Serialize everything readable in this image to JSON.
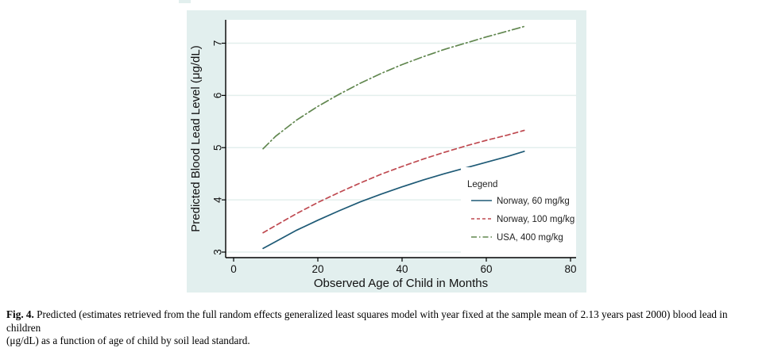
{
  "figure": {
    "frame_color": "#e2efee",
    "plot_bg": "#ffffff",
    "grid_color": "#e3efed",
    "axis_color": "#000000",
    "caption": {
      "label": "Fig. 4.",
      "lines": [
        "Predicted (estimates retrieved from the full random effects generalized least squares model with year fixed at the sample mean of 2.13 years past 2000) blood lead in children",
        "(μg/dL) as a function of age of child by soil lead standard."
      ]
    }
  },
  "chart_data": {
    "type": "line",
    "title": "",
    "xlabel": "Observed Age of Child in Months",
    "ylabel": "Predicted Blood Lead Level (μg/dL)",
    "xlim": [
      -2,
      81
    ],
    "ylim": [
      2.9,
      7.45
    ],
    "x_ticks": [
      0,
      20,
      40,
      60,
      80
    ],
    "y_ticks": [
      3,
      4,
      5,
      6,
      7
    ],
    "grid": "horizontal",
    "legend": {
      "title": "Legend",
      "position": "inside-lower-right"
    },
    "x": [
      7,
      10,
      15,
      20,
      25,
      30,
      35,
      40,
      45,
      50,
      55,
      60,
      65,
      69
    ],
    "series": [
      {
        "name": "Norway, 60 mg/kg",
        "color": "#1e5a76",
        "style": "solid",
        "values": [
          3.07,
          3.2,
          3.42,
          3.61,
          3.79,
          3.96,
          4.11,
          4.25,
          4.38,
          4.5,
          4.61,
          4.72,
          4.83,
          4.93
        ]
      },
      {
        "name": "Norway, 100 mg/kg",
        "color": "#bf4a51",
        "style": "dashed",
        "values": [
          3.37,
          3.51,
          3.74,
          3.95,
          4.14,
          4.32,
          4.49,
          4.64,
          4.78,
          4.91,
          5.03,
          5.14,
          5.24,
          5.33
        ]
      },
      {
        "name": "USA, 400 mg/kg",
        "color": "#61874f",
        "style": "dashdot",
        "values": [
          4.98,
          5.22,
          5.53,
          5.79,
          6.02,
          6.23,
          6.42,
          6.59,
          6.74,
          6.88,
          7.0,
          7.12,
          7.23,
          7.32
        ]
      }
    ]
  }
}
